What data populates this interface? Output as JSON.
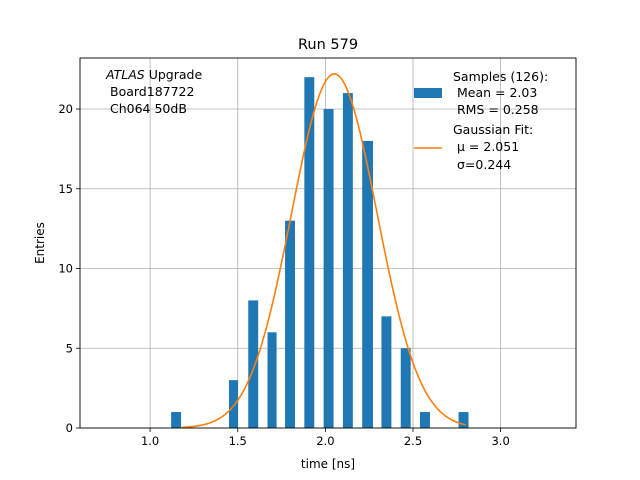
{
  "chart_data": {
    "type": "bar",
    "title": "Run 579",
    "xlabel": "time [ns]",
    "ylabel": "Entries",
    "xlim": [
      0.6,
      3.43
    ],
    "ylim": [
      0,
      23.2
    ],
    "x_ticks": [
      1.0,
      1.5,
      2.0,
      2.5,
      3.0
    ],
    "x_tick_labels": [
      "1.0",
      "1.5",
      "2.0",
      "2.5",
      "3.0"
    ],
    "y_ticks": [
      0,
      5,
      10,
      15,
      20
    ],
    "y_tick_labels": [
      "0",
      "5",
      "10",
      "15",
      "20"
    ],
    "grid": true,
    "annotation": {
      "italic": "ATLAS",
      "line1_rest": " Upgrade",
      "line2": "Board187722",
      "line3": "Ch064 50dB"
    },
    "histogram": {
      "name": "Samples (126):",
      "bin_edges": [
        1.12,
        1.175,
        1.23,
        1.285,
        1.34,
        1.395,
        1.45,
        1.5,
        1.56,
        1.615,
        1.67,
        1.72,
        1.77,
        1.825,
        1.88,
        1.935,
        1.99,
        2.045,
        2.1,
        2.155,
        2.21,
        2.27,
        2.32,
        2.375,
        2.43,
        2.485,
        2.54,
        2.595,
        2.65,
        2.705,
        2.76,
        2.815,
        2.87
      ],
      "counts": [
        1,
        0,
        0,
        0,
        0,
        0,
        3,
        0,
        8,
        0,
        6,
        0,
        13,
        0,
        22,
        0,
        20,
        0,
        21,
        0,
        18,
        0,
        7,
        0,
        5,
        0,
        1,
        0,
        0,
        0,
        1,
        0
      ],
      "color": "#1f77b4",
      "mean_label": "Mean = 2.03",
      "rms_label": "RMS = 0.258"
    },
    "fit": {
      "name": "Gaussian Fit:",
      "mu": 2.051,
      "sigma": 0.244,
      "amplitude": 22.2,
      "x_range": [
        1.18,
        2.8
      ],
      "color": "#ff7f0e",
      "mu_label": "μ = 2.051",
      "sigma_label": "σ=0.244"
    },
    "legend_position": "top-right"
  }
}
